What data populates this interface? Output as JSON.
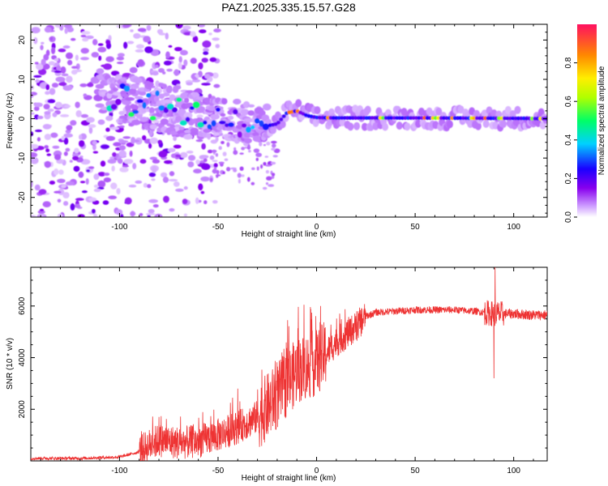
{
  "title": "PAZ1.2025.335.15.57.G28",
  "chart_data": [
    {
      "type": "heatmap",
      "title": "PAZ1.2025.335.15.57.G28",
      "xlabel": "Height of straight line (km)",
      "ylabel": "Frequency (Hz)",
      "xlim": [
        -145,
        117
      ],
      "ylim": [
        -25,
        24
      ],
      "x_ticks": [
        -100,
        -50,
        0,
        50,
        100
      ],
      "x_tick_labels": [
        "-100",
        "-50",
        "0",
        "50",
        "100"
      ],
      "y_ticks": [
        20,
        10,
        0,
        -10,
        -20
      ],
      "y_tick_labels": [
        "20",
        "10",
        "0",
        "-10",
        "-20"
      ],
      "description": "Spectral amplitude blobs: scattered broadband noise below -50 km converging to a narrow band near 0 Hz above -30 km",
      "colorbar": {
        "label": "Normalized spectral amplitude",
        "range": [
          0,
          1
        ],
        "ticks": [
          "0.0",
          "0.2",
          "0.4",
          "0.6",
          "0.8"
        ],
        "colors": [
          "#ffffff",
          "#cc99ff",
          "#8800ee",
          "#1a00ff",
          "#00d0ff",
          "#00ff66",
          "#b0ff00",
          "#ffee00",
          "#ff8800",
          "#ff1060"
        ]
      },
      "ridge": [
        {
          "x": -100,
          "y": 5
        },
        {
          "x": -90,
          "y": 4
        },
        {
          "x": -80,
          "y": 3
        },
        {
          "x": -70,
          "y": 2
        },
        {
          "x": -60,
          "y": 0.5
        },
        {
          "x": -50,
          "y": 0
        },
        {
          "x": -40,
          "y": -0.5
        },
        {
          "x": -30,
          "y": -1.5
        },
        {
          "x": -25,
          "y": -1.8
        },
        {
          "x": -20,
          "y": -1.3
        },
        {
          "x": -15,
          "y": 1.5
        },
        {
          "x": -10,
          "y": 2
        },
        {
          "x": -5,
          "y": 0.8
        },
        {
          "x": 0,
          "y": 0.3
        },
        {
          "x": 10,
          "y": 0.2
        },
        {
          "x": 50,
          "y": 0.2
        },
        {
          "x": 100,
          "y": 0.1
        },
        {
          "x": 117,
          "y": 0
        }
      ]
    },
    {
      "type": "line",
      "xlabel": "Height of straight line (km)",
      "ylabel": "SNR (10 * v/v)",
      "xlim": [
        -145,
        117
      ],
      "ylim": [
        0,
        7500
      ],
      "x_ticks": [
        -100,
        -50,
        0,
        50,
        100
      ],
      "x_tick_labels": [
        "-100",
        "-50",
        "0",
        "50",
        "100"
      ],
      "y_ticks": [
        2000,
        4000,
        6000
      ],
      "y_tick_labels": [
        "2000",
        "4000",
        "6000"
      ],
      "series_color": "#ee3333",
      "envelope": [
        {
          "x": -145,
          "y": 100
        },
        {
          "x": -120,
          "y": 100
        },
        {
          "x": -100,
          "y": 150
        },
        {
          "x": -95,
          "y": 250
        },
        {
          "x": -90,
          "y": 350
        },
        {
          "x": -85,
          "y": 600
        },
        {
          "x": -80,
          "y": 800
        },
        {
          "x": -70,
          "y": 700
        },
        {
          "x": -60,
          "y": 750
        },
        {
          "x": -50,
          "y": 1000
        },
        {
          "x": -40,
          "y": 1300
        },
        {
          "x": -30,
          "y": 1700
        },
        {
          "x": -20,
          "y": 2500
        },
        {
          "x": -10,
          "y": 3500
        },
        {
          "x": 0,
          "y": 3800
        },
        {
          "x": 5,
          "y": 4200
        },
        {
          "x": 10,
          "y": 4600
        },
        {
          "x": 15,
          "y": 4900
        },
        {
          "x": 20,
          "y": 5200
        },
        {
          "x": 25,
          "y": 5600
        },
        {
          "x": 30,
          "y": 5750
        },
        {
          "x": 40,
          "y": 5800
        },
        {
          "x": 50,
          "y": 5850
        },
        {
          "x": 60,
          "y": 5850
        },
        {
          "x": 70,
          "y": 5850
        },
        {
          "x": 80,
          "y": 5800
        },
        {
          "x": 90,
          "y": 5700
        },
        {
          "x": 100,
          "y": 5700
        },
        {
          "x": 110,
          "y": 5650
        },
        {
          "x": 117,
          "y": 5650
        }
      ],
      "spikes": [
        {
          "x": 90,
          "y": 3200
        },
        {
          "x": 90.6,
          "y": 7500
        },
        {
          "x": 2,
          "y": 6000
        },
        {
          "x": -40,
          "y": 2800
        },
        {
          "x": -80,
          "y": 1700
        }
      ]
    }
  ]
}
